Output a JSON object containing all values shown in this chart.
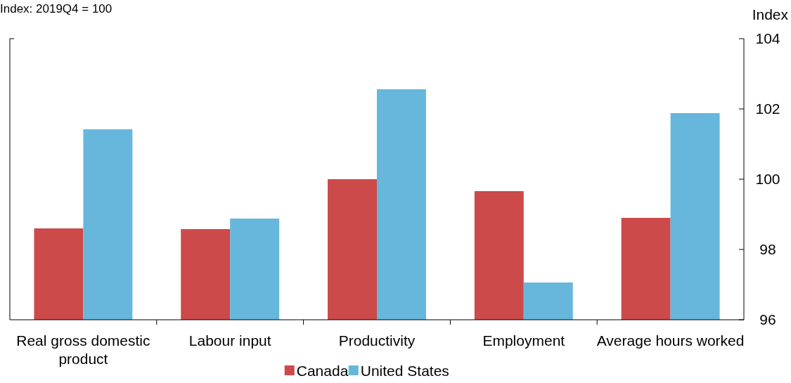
{
  "chart_data": {
    "type": "bar",
    "subtitle": "Index: 2019Q4 = 100",
    "ylabel": "Index",
    "categories": [
      "Real gross domestic product",
      "Labour input",
      "Productivity",
      "Employment",
      "Average hours worked"
    ],
    "series": [
      {
        "name": "Canada",
        "color": "#cd4a4a",
        "values": [
          98.6,
          98.58,
          100.0,
          99.66,
          98.9
        ]
      },
      {
        "name": "United States",
        "color": "#67b7dc",
        "values": [
          101.42,
          98.88,
          102.56,
          97.06,
          101.88
        ]
      }
    ],
    "ylim": [
      96,
      104
    ],
    "yticks": [
      96,
      98,
      100,
      102,
      104
    ],
    "grid": false,
    "legend": "bottom"
  }
}
